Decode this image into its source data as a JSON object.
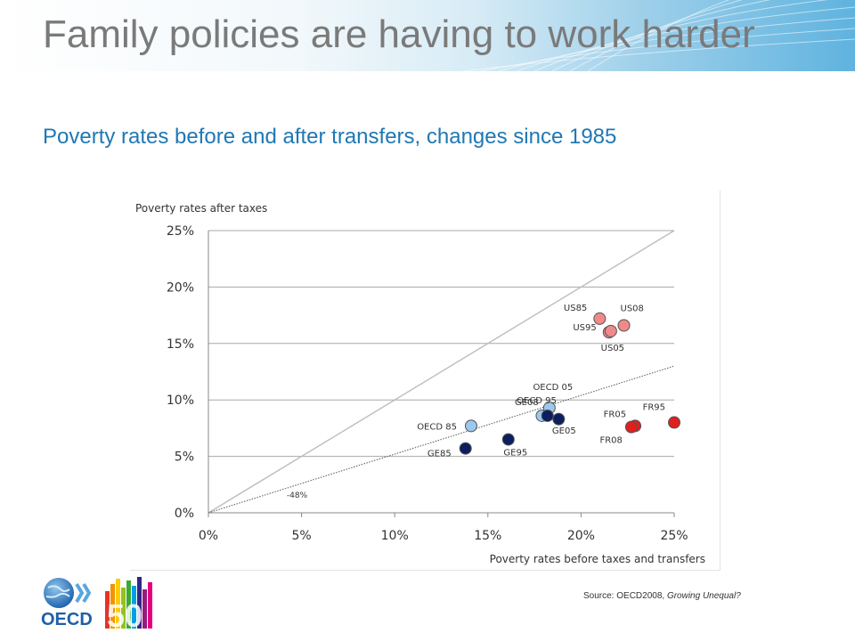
{
  "slide": {
    "title": "Family policies are having to work harder",
    "subtitle": "Poverty rates before and after transfers, changes since 1985"
  },
  "source": {
    "prefix": "Source: OECD2008, ",
    "publication": "Growing Unequal?"
  },
  "logo": {
    "text": "OECD",
    "anniversary": "50"
  },
  "colors": {
    "title": "#7a7a7a",
    "subtitle": "#1f78b4",
    "US": "#f08a8a",
    "FR": "#e11f1f",
    "GE": "#0d1e5e",
    "OECD": "#9cc8ef"
  },
  "chart_data": {
    "type": "scatter",
    "title": "",
    "ylabel": "Poverty rates after taxes",
    "xlabel": "Poverty rates before taxes and transfers",
    "xlim": [
      0,
      0.25
    ],
    "ylim": [
      0,
      0.25
    ],
    "x_ticks": [
      "0%",
      "5%",
      "10%",
      "15%",
      "20%",
      "25%"
    ],
    "y_ticks": [
      "0%",
      "5%",
      "10%",
      "15%",
      "20%",
      "25%"
    ],
    "grid": "horizontal",
    "reference_lines": [
      {
        "type": "diagonal",
        "slope": 1.0
      },
      {
        "type": "dotted",
        "slope": 0.52,
        "label": "-48%"
      }
    ],
    "points": [
      {
        "label": "US85",
        "x": 0.21,
        "y": 0.172,
        "group": "US"
      },
      {
        "label": "US95",
        "x": 0.215,
        "y": 0.16,
        "group": "US"
      },
      {
        "label": "US05",
        "x": 0.216,
        "y": 0.161,
        "group": "US"
      },
      {
        "label": "US08",
        "x": 0.223,
        "y": 0.166,
        "group": "US"
      },
      {
        "label": "OECD 85",
        "x": 0.141,
        "y": 0.077,
        "group": "OECD"
      },
      {
        "label": "OECD 95",
        "x": 0.179,
        "y": 0.086,
        "group": "OECD"
      },
      {
        "label": "OECD 05",
        "x": 0.183,
        "y": 0.093,
        "group": "OECD"
      },
      {
        "label": "GE85",
        "x": 0.138,
        "y": 0.057,
        "group": "GE"
      },
      {
        "label": "GE95",
        "x": 0.161,
        "y": 0.065,
        "group": "GE"
      },
      {
        "label": "GE08",
        "x": 0.182,
        "y": 0.086,
        "group": "GE"
      },
      {
        "label": "GE05",
        "x": 0.188,
        "y": 0.083,
        "group": "GE"
      },
      {
        "label": "FR05",
        "x": 0.229,
        "y": 0.077,
        "group": "FR"
      },
      {
        "label": "FR08",
        "x": 0.227,
        "y": 0.076,
        "group": "FR"
      },
      {
        "label": "FR95",
        "x": 0.25,
        "y": 0.08,
        "group": "FR"
      }
    ]
  }
}
